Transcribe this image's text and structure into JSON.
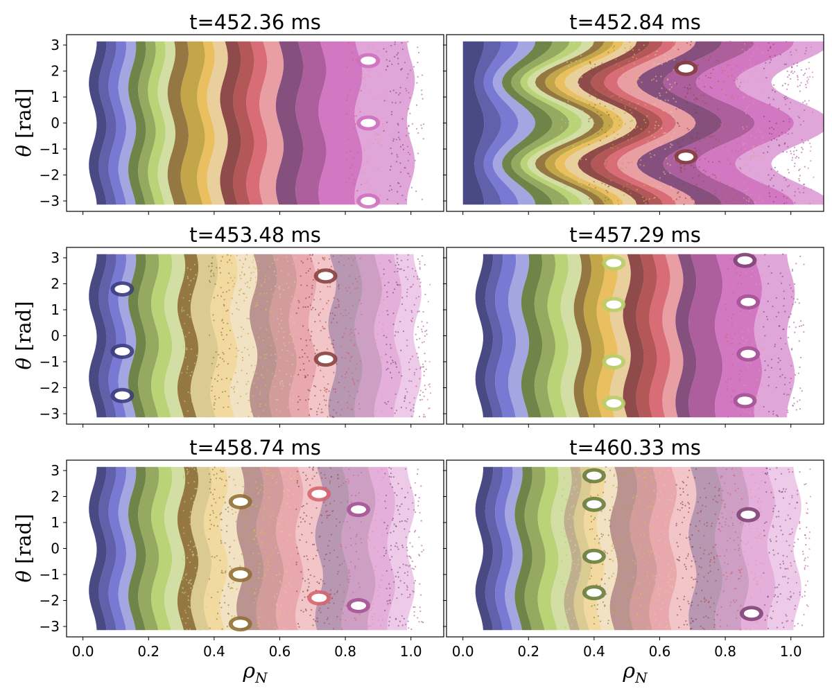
{
  "chart_data": {
    "type": "scatter",
    "description_kind": "Poincaré plots, 3x2 grid of panels sharing axes",
    "xlabel": "ρN",
    "xlabel_main": "ρ",
    "xlabel_sub": "N",
    "ylabel": "θ [rad]",
    "ylabel_greek": "θ",
    "ylabel_unit": " [rad]",
    "xlim": [
      -0.05,
      1.1
    ],
    "ylim": [
      -3.4,
      3.4
    ],
    "x_ticks": [
      0.0,
      0.2,
      0.4,
      0.6,
      0.8,
      1.0
    ],
    "x_tick_labels": [
      "0.0",
      "0.2",
      "0.4",
      "0.6",
      "0.8",
      "1.0"
    ],
    "y_ticks": [
      3,
      2,
      1,
      0,
      -1,
      -2,
      -3
    ],
    "y_tick_labels": [
      "3",
      "2",
      "1",
      "0",
      "−1",
      "−2",
      "−3"
    ],
    "grid": false,
    "legend": "none",
    "colormap": [
      "#393b79",
      "#5254a3",
      "#6b6ecf",
      "#9c9ede",
      "#637939",
      "#8ca252",
      "#b5cf6b",
      "#cedb9c",
      "#8c6d31",
      "#bd9e39",
      "#e7ba52",
      "#e7cb94",
      "#843c39",
      "#ad494a",
      "#d6616b",
      "#e7969c",
      "#7b4173",
      "#a55194",
      "#ce6dbd",
      "#de9ed6"
    ],
    "panels": [
      {
        "title": "t=452.36 ms",
        "rho_min": 0.03,
        "rho_max": 1.0,
        "structure": "regular",
        "band_edges": [
          0.03,
          0.06,
          0.09,
          0.12,
          0.15,
          0.18,
          0.21,
          0.24,
          0.27,
          0.31,
          0.36,
          0.39,
          0.43,
          0.47,
          0.51,
          0.55,
          0.6,
          0.66,
          0.73,
          0.84,
          1.0
        ],
        "islands": [
          {
            "rho": 0.87,
            "theta": 0.0,
            "color": "#ce6dbd"
          },
          {
            "rho": 0.87,
            "theta": 2.4,
            "color": "#ce6dbd"
          },
          {
            "rho": 0.87,
            "theta": -3.0,
            "color": "#ce6dbd"
          }
        ]
      },
      {
        "title": "t=452.84 ms",
        "rho_min": 0.0,
        "rho_max": 1.03,
        "structure": "kinked",
        "band_edges": [
          0.0,
          0.05,
          0.09,
          0.13,
          0.17,
          0.21,
          0.25,
          0.28,
          0.31,
          0.34,
          0.37,
          0.4,
          0.44,
          0.48,
          0.52,
          0.56,
          0.62,
          0.7,
          0.8,
          0.92,
          1.03
        ],
        "islands": [
          {
            "rho": 0.68,
            "theta": 2.1,
            "color": "#843c39"
          },
          {
            "rho": 0.68,
            "theta": -1.3,
            "color": "#843c39"
          }
        ]
      },
      {
        "title": "t=453.48 ms",
        "rho_min": 0.03,
        "rho_max": 1.02,
        "structure": "chaotic",
        "band_edges": [
          0.03,
          0.06,
          0.09,
          0.12,
          0.15,
          0.18,
          0.22,
          0.26,
          0.3,
          0.34,
          0.4,
          0.46,
          0.52,
          0.58,
          0.64,
          0.7,
          0.76,
          0.84,
          0.9,
          0.96,
          1.02
        ],
        "islands": [
          {
            "rho": 0.12,
            "theta": 1.8,
            "color": "#393b79"
          },
          {
            "rho": 0.12,
            "theta": -0.6,
            "color": "#393b79"
          },
          {
            "rho": 0.12,
            "theta": -2.3,
            "color": "#393b79"
          },
          {
            "rho": 0.74,
            "theta": 2.3,
            "color": "#843c39"
          },
          {
            "rho": 0.74,
            "theta": -0.9,
            "color": "#843c39"
          }
        ]
      },
      {
        "title": "t=457.29 ms",
        "rho_min": 0.05,
        "rho_max": 1.0,
        "structure": "regular",
        "band_edges": [
          0.05,
          0.08,
          0.11,
          0.15,
          0.19,
          0.23,
          0.27,
          0.31,
          0.35,
          0.38,
          0.42,
          0.46,
          0.5,
          0.54,
          0.58,
          0.62,
          0.66,
          0.7,
          0.78,
          0.9,
          1.0
        ],
        "islands": [
          {
            "rho": 0.46,
            "theta": 2.8,
            "color": "#b5cf6b"
          },
          {
            "rho": 0.46,
            "theta": 1.2,
            "color": "#b5cf6b"
          },
          {
            "rho": 0.46,
            "theta": -1.0,
            "color": "#b5cf6b"
          },
          {
            "rho": 0.46,
            "theta": -2.6,
            "color": "#b5cf6b"
          },
          {
            "rho": 0.86,
            "theta": 2.9,
            "color": "#7b4173"
          },
          {
            "rho": 0.87,
            "theta": 1.3,
            "color": "#a55194"
          },
          {
            "rho": 0.87,
            "theta": -0.7,
            "color": "#a55194"
          },
          {
            "rho": 0.86,
            "theta": -2.5,
            "color": "#a55194"
          }
        ]
      },
      {
        "title": "t=458.74 ms",
        "rho_min": 0.03,
        "rho_max": 1.0,
        "structure": "chaotic",
        "band_edges": [
          0.03,
          0.06,
          0.09,
          0.12,
          0.15,
          0.18,
          0.22,
          0.26,
          0.3,
          0.34,
          0.38,
          0.43,
          0.48,
          0.54,
          0.6,
          0.66,
          0.72,
          0.8,
          0.88,
          0.94,
          1.0
        ],
        "islands": [
          {
            "rho": 0.48,
            "theta": 1.8,
            "color": "#8c6d31"
          },
          {
            "rho": 0.48,
            "theta": -1.0,
            "color": "#8c6d31"
          },
          {
            "rho": 0.48,
            "theta": -2.9,
            "color": "#8c6d31"
          },
          {
            "rho": 0.72,
            "theta": 2.1,
            "color": "#d6616b"
          },
          {
            "rho": 0.72,
            "theta": -1.9,
            "color": "#d6616b"
          },
          {
            "rho": 0.84,
            "theta": 1.5,
            "color": "#a55194"
          },
          {
            "rho": 0.84,
            "theta": -2.2,
            "color": "#a55194"
          }
        ]
      },
      {
        "title": "t=460.33 ms",
        "rho_min": 0.05,
        "rho_max": 1.02,
        "structure": "chaotic",
        "band_edges": [
          0.05,
          0.08,
          0.11,
          0.14,
          0.17,
          0.2,
          0.24,
          0.28,
          0.32,
          0.35,
          0.38,
          0.42,
          0.46,
          0.52,
          0.58,
          0.64,
          0.7,
          0.78,
          0.86,
          0.94,
          1.02
        ],
        "islands": [
          {
            "rho": 0.4,
            "theta": 2.8,
            "color": "#637939"
          },
          {
            "rho": 0.4,
            "theta": 1.7,
            "color": "#637939"
          },
          {
            "rho": 0.4,
            "theta": -0.3,
            "color": "#637939"
          },
          {
            "rho": 0.4,
            "theta": -1.7,
            "color": "#637939"
          },
          {
            "rho": 0.87,
            "theta": 1.3,
            "color": "#7b4173"
          },
          {
            "rho": 0.88,
            "theta": -2.5,
            "color": "#7b4173"
          }
        ]
      }
    ]
  }
}
